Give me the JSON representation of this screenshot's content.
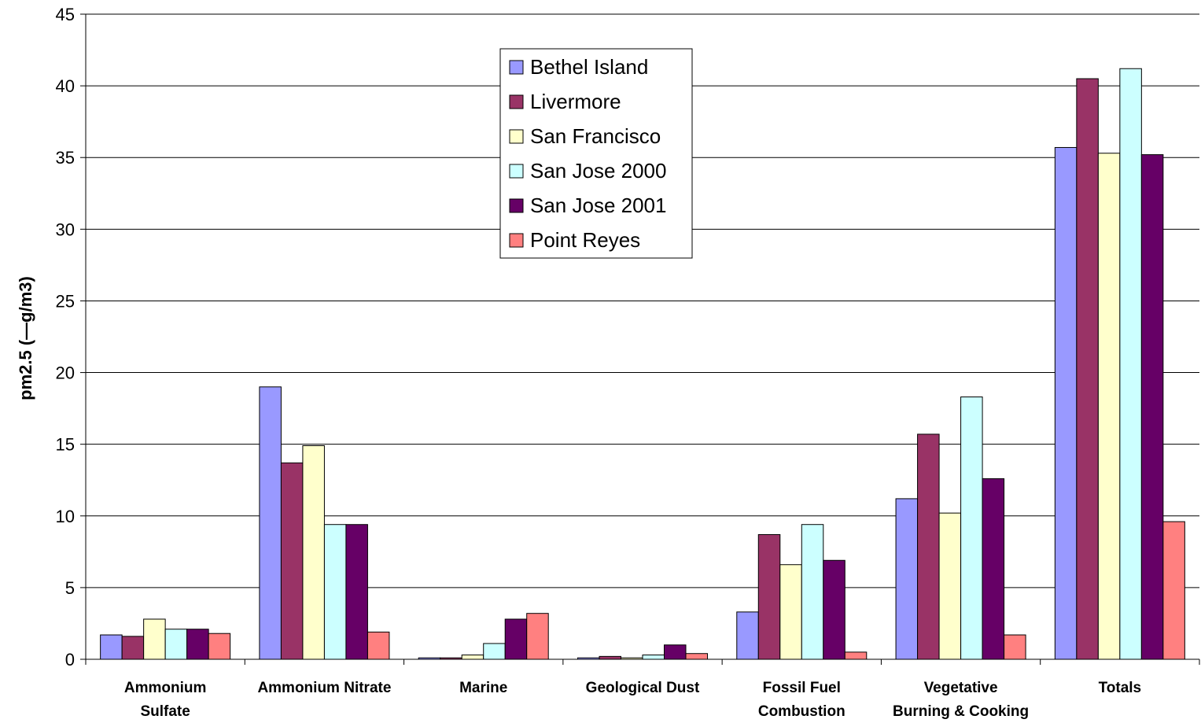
{
  "chart_data": {
    "type": "bar",
    "title": "",
    "xlabel": "",
    "ylabel": "pm2.5 (—g/m3)",
    "ylim": [
      0,
      45
    ],
    "ytick_step": 5,
    "yticks": [
      "0",
      "5",
      "10",
      "15",
      "20",
      "25",
      "30",
      "35",
      "40",
      "45"
    ],
    "grid": true,
    "legend_position": "top-center",
    "categories": [
      [
        "Ammonium",
        "Sulfate"
      ],
      [
        "Ammonium Nitrate"
      ],
      [
        "Marine"
      ],
      [
        "Geological Dust"
      ],
      [
        "Fossil Fuel",
        "Combustion"
      ],
      [
        "Vegetative",
        "Burning & Cooking"
      ],
      [
        "Totals"
      ]
    ],
    "series": [
      {
        "name": "Bethel Island",
        "color": "#9999ff",
        "values": [
          1.7,
          19.0,
          0.1,
          0.1,
          3.3,
          11.2,
          35.7
        ]
      },
      {
        "name": "Livermore",
        "color": "#993366",
        "values": [
          1.6,
          13.7,
          0.1,
          0.2,
          8.7,
          15.7,
          40.5
        ]
      },
      {
        "name": "San Francisco",
        "color": "#ffffcc",
        "values": [
          2.8,
          14.9,
          0.3,
          0.1,
          6.6,
          10.2,
          35.3
        ]
      },
      {
        "name": "San Jose 2000",
        "color": "#ccffff",
        "values": [
          2.1,
          9.4,
          1.1,
          0.3,
          9.4,
          18.3,
          41.2
        ]
      },
      {
        "name": "San Jose 2001",
        "color": "#660066",
        "values": [
          2.1,
          9.4,
          2.8,
          1.0,
          6.9,
          12.6,
          35.2
        ]
      },
      {
        "name": "Point Reyes",
        "color": "#ff8080",
        "values": [
          1.8,
          1.9,
          3.2,
          0.4,
          0.5,
          1.7,
          9.6
        ]
      }
    ]
  }
}
